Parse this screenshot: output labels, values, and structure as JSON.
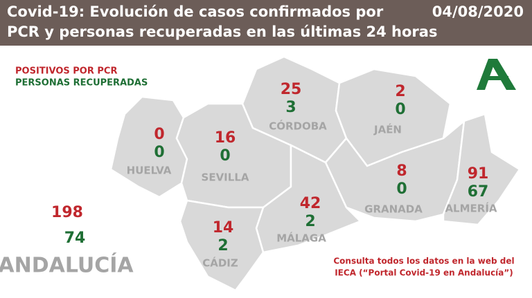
{
  "header": {
    "title": [
      "Covid-19: Evolución de casos confirmados por",
      "PCR y personas recuperadas en las últimas 24 horas"
    ],
    "date": "04/08/2020"
  },
  "legend": {
    "positives": "POSITIVOS POR PCR",
    "recovered": "PERSONAS RECUPERADAS"
  },
  "provinces": [
    {
      "name": "HUELVA",
      "positives": 0,
      "recovered": 0
    },
    {
      "name": "SEVILLA",
      "positives": 16,
      "recovered": 0
    },
    {
      "name": "CÓRDOBA",
      "positives": 25,
      "recovered": 3
    },
    {
      "name": "JAÉN",
      "positives": 2,
      "recovered": 0
    },
    {
      "name": "GRANADA",
      "positives": 8,
      "recovered": 0
    },
    {
      "name": "ALMERÍA",
      "positives": 91,
      "recovered": 67
    },
    {
      "name": "MÁLAGA",
      "positives": 42,
      "recovered": 2
    },
    {
      "name": "CÁDIZ",
      "positives": 14,
      "recovered": 2
    }
  ],
  "total": {
    "name": "ANDALUCÍA",
    "positives": 198,
    "recovered": 74
  },
  "footnote": [
    "Consulta todos los datos en la web del",
    "IECA (“Portal Covid-19 en Andalucía”)"
  ]
}
